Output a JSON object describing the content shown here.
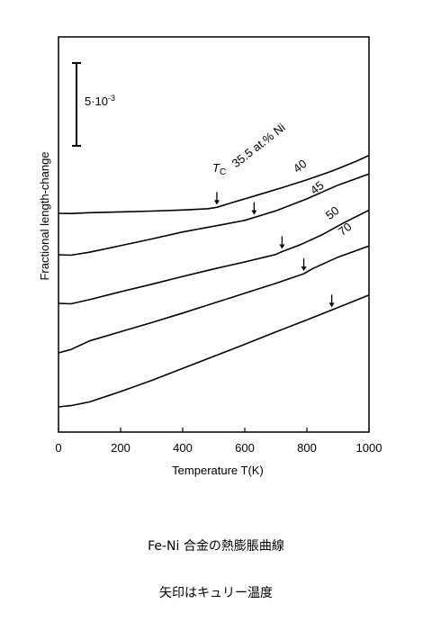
{
  "chart_data": {
    "type": "line",
    "xlabel": "Temperature T(K)",
    "ylabel": "Fractional length-change",
    "xlim": [
      0,
      1000
    ],
    "xticks": [
      "0",
      "200",
      "400",
      "600",
      "800",
      "1000"
    ],
    "scale_bar_label": "5·10",
    "scale_bar_exp": "-3",
    "tc_label": "T",
    "tc_sub": "C",
    "series": [
      {
        "name": "35.5 at.% Ni",
        "x": [
          0,
          40,
          100,
          200,
          300,
          400,
          480,
          510,
          560,
          640,
          720,
          800,
          880,
          960,
          1000
        ],
        "y": [
          0.0,
          -0.05,
          0.15,
          0.35,
          0.55,
          0.8,
          1.1,
          1.45,
          2.6,
          4.4,
          6.2,
          8.1,
          10.2,
          12.6,
          14.0
        ],
        "tc": 510
      },
      {
        "name": "40",
        "x": [
          0,
          40,
          100,
          200,
          300,
          400,
          500,
          600,
          630,
          700,
          800,
          900,
          1000
        ],
        "y": [
          0.0,
          -0.1,
          0.6,
          2.2,
          3.8,
          5.5,
          6.9,
          8.3,
          9.0,
          10.6,
          13.5,
          16.8,
          19.5
        ],
        "tc": 630
      },
      {
        "name": "45",
        "x": [
          0,
          40,
          100,
          200,
          300,
          400,
          500,
          600,
          700,
          720,
          780,
          850,
          920,
          1000
        ],
        "y": [
          0.0,
          -0.1,
          0.9,
          2.8,
          4.6,
          6.5,
          8.3,
          10.0,
          11.8,
          12.5,
          14.2,
          16.6,
          19.5,
          22.5
        ],
        "tc": 720
      },
      {
        "name": "50",
        "x": [
          0,
          40,
          100,
          200,
          300,
          400,
          500,
          600,
          700,
          790,
          820,
          900,
          1000
        ],
        "y": [
          0.0,
          0.8,
          2.9,
          5.1,
          7.3,
          9.6,
          12.0,
          14.4,
          16.8,
          19.1,
          20.4,
          23.1,
          25.8
        ],
        "tc": 790
      },
      {
        "name": "70",
        "x": [
          0,
          40,
          100,
          200,
          300,
          400,
          500,
          600,
          700,
          800,
          880,
          940,
          1000
        ],
        "y": [
          0.0,
          0.3,
          1.2,
          3.7,
          6.4,
          9.3,
          12.2,
          15.1,
          18.1,
          21.0,
          23.4,
          25.2,
          27.0
        ],
        "tc": 880
      }
    ]
  },
  "caption": {
    "line1": "Fe-Ni 合金の熱膨脹曲線",
    "line2": "矢印はキュリー温度"
  }
}
